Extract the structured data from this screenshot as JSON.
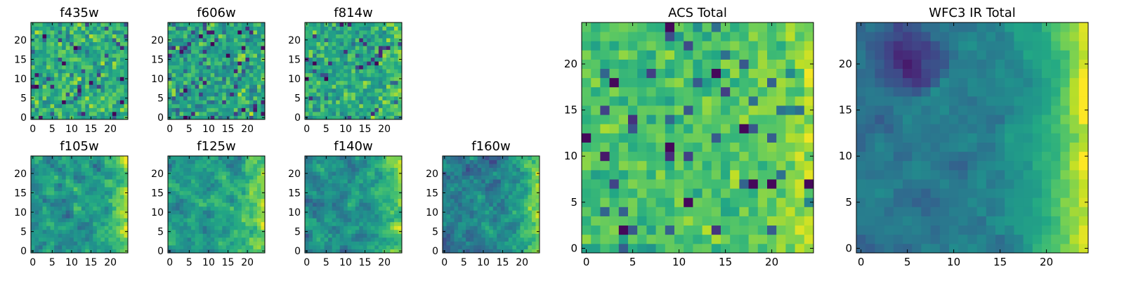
{
  "colormap": "viridis",
  "colors": {
    "low": "#440154",
    "mid": "#21918c",
    "high": "#fde725"
  },
  "chart_data": [
    {
      "type": "heatmap",
      "title": "f435w",
      "xlim": [
        0,
        24
      ],
      "ylim": [
        0,
        24
      ],
      "xticks": [
        0,
        5,
        10,
        15,
        20
      ],
      "yticks": [
        0,
        5,
        10,
        15,
        20
      ],
      "grid": false,
      "pattern": "noisy",
      "mean": 0.62,
      "sigma": 0.16,
      "seed": 11
    },
    {
      "type": "heatmap",
      "title": "f606w",
      "xlim": [
        0,
        24
      ],
      "ylim": [
        0,
        24
      ],
      "xticks": [
        0,
        5,
        10,
        15,
        20
      ],
      "yticks": [
        0,
        5,
        10,
        15,
        20
      ],
      "grid": false,
      "pattern": "noisy",
      "mean": 0.58,
      "sigma": 0.17,
      "seed": 23
    },
    {
      "type": "heatmap",
      "title": "f814w",
      "xlim": [
        0,
        24
      ],
      "ylim": [
        0,
        24
      ],
      "xticks": [
        0,
        5,
        10,
        15,
        20
      ],
      "yticks": [
        0,
        5,
        10,
        15,
        20
      ],
      "grid": false,
      "pattern": "noisy",
      "mean": 0.6,
      "sigma": 0.15,
      "seed": 37,
      "right_glow": 0.15
    },
    {
      "type": "heatmap",
      "title": "f105w",
      "xlim": [
        0,
        24
      ],
      "ylim": [
        0,
        24
      ],
      "xticks": [
        0,
        5,
        10,
        15,
        20
      ],
      "yticks": [
        0,
        5,
        10,
        15,
        20
      ],
      "grid": false,
      "pattern": "smooth",
      "mean": 0.5,
      "sigma": 0.16,
      "seed": 41,
      "right_glow": 0.35
    },
    {
      "type": "heatmap",
      "title": "f125w",
      "xlim": [
        0,
        24
      ],
      "ylim": [
        0,
        24
      ],
      "xticks": [
        0,
        5,
        10,
        15,
        20
      ],
      "yticks": [
        0,
        5,
        10,
        15,
        20
      ],
      "grid": false,
      "pattern": "smooth",
      "mean": 0.55,
      "sigma": 0.15,
      "seed": 53,
      "right_glow": 0.3
    },
    {
      "type": "heatmap",
      "title": "f140w",
      "xlim": [
        0,
        24
      ],
      "ylim": [
        0,
        24
      ],
      "xticks": [
        0,
        5,
        10,
        15,
        20
      ],
      "yticks": [
        0,
        5,
        10,
        15,
        20
      ],
      "grid": false,
      "pattern": "smooth",
      "mean": 0.5,
      "sigma": 0.15,
      "seed": 67,
      "right_glow": 0.3
    },
    {
      "type": "heatmap",
      "title": "f160w",
      "xlim": [
        0,
        24
      ],
      "ylim": [
        0,
        24
      ],
      "xticks": [
        0,
        5,
        10,
        15,
        20
      ],
      "yticks": [
        0,
        5,
        10,
        15,
        20
      ],
      "grid": false,
      "pattern": "smooth",
      "mean": 0.42,
      "sigma": 0.16,
      "seed": 79,
      "right_glow": 0.45
    },
    {
      "type": "heatmap",
      "title": "ACS Total",
      "xlim": [
        0,
        24
      ],
      "ylim": [
        0,
        24
      ],
      "xticks": [
        0,
        5,
        10,
        15,
        20
      ],
      "yticks": [
        0,
        5,
        10,
        15,
        20
      ],
      "grid": false,
      "pattern": "noisy",
      "mean": 0.7,
      "sigma": 0.1,
      "seed": 97,
      "right_glow": 0.15,
      "dark_cells": [
        [
          9,
          24
        ],
        [
          14,
          19
        ],
        [
          3,
          18
        ],
        [
          17,
          13
        ],
        [
          9,
          11
        ],
        [
          18,
          7
        ],
        [
          20,
          7
        ],
        [
          24,
          7
        ],
        [
          11,
          5
        ],
        [
          4,
          2
        ],
        [
          0,
          12
        ]
      ]
    },
    {
      "type": "heatmap",
      "title": "WFC3 IR Total",
      "xlim": [
        0,
        24
      ],
      "ylim": [
        0,
        24
      ],
      "xticks": [
        0,
        5,
        10,
        15,
        20
      ],
      "yticks": [
        0,
        5,
        10,
        15,
        20
      ],
      "grid": false,
      "pattern": "smooth",
      "mean": 0.4,
      "sigma": 0.08,
      "seed": 113,
      "right_glow": 0.55,
      "dark_region": {
        "x": [
          0,
          9
        ],
        "y": [
          15,
          24
        ]
      }
    }
  ]
}
